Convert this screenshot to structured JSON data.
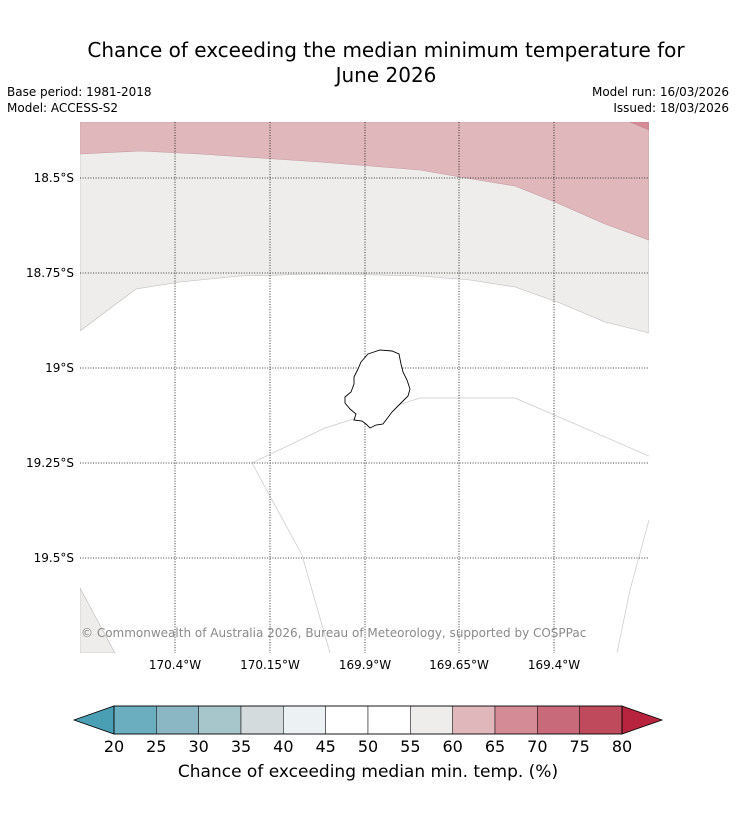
{
  "title_line1": "Chance of exceeding the median minimum temperature for",
  "title_line2": "June 2026",
  "base_period": "Base period: 1981-2018",
  "model": "Model: ACCESS-S2",
  "model_run": "Model run: 16/03/2026",
  "issued": "Issued: 18/03/2026",
  "lat_labels": [
    "18.5°S",
    "18.75°S",
    "19°S",
    "19.25°S",
    "19.5°S"
  ],
  "lon_labels": [
    "170.4°W",
    "170.15°W",
    "169.9°W",
    "169.65°W",
    "169.4°W"
  ],
  "copyright": "© Commonwealth of Australia 2026, Bureau of Meteorology, supported by COSPPac",
  "colorbar": {
    "ticks": [
      "20",
      "25",
      "30",
      "35",
      "40",
      "45",
      "50",
      "55",
      "60",
      "65",
      "70",
      "75",
      "80"
    ],
    "colors": [
      "#4a9fb4",
      "#6aaebf",
      "#8ab7c3",
      "#a7c6cb",
      "#d3dbdc",
      "#ecf2f3",
      "#ffffff",
      "#ffffff",
      "#eeedeb",
      "#e0b8bc",
      "#d48b96",
      "#c86a79",
      "#bf4a5c",
      "#b8233e"
    ],
    "label": "Chance of exceeding median min. temp. (%)"
  },
  "map_colors": {
    "band_60_65": "#e0b8bc",
    "band_55_60": "#eeedeb",
    "band_65_70": "#d48b96"
  }
}
